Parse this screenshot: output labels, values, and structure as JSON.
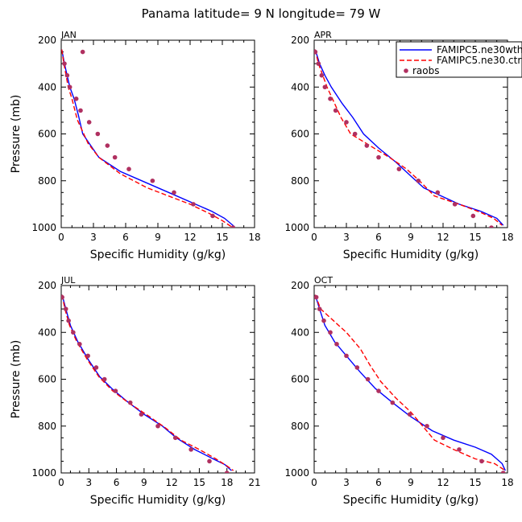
{
  "figure": {
    "title": "Panama   latitude= 9 N longitude= 79 W"
  },
  "legend": {
    "entries": [
      {
        "label": "FAMIPC5.ne30wthr",
        "color": "#0000ff",
        "style": "solid"
      },
      {
        "label": "FAMIPC5.ne30.ctrl",
        "color": "#ff0000",
        "style": "dashed"
      },
      {
        "label": "raobs",
        "color": "#b03060",
        "style": "dot"
      }
    ]
  },
  "chart_data": [
    {
      "type": "line",
      "title": "JAN",
      "xlabel": "Specific Humidity (g/kg)",
      "ylabel": "Pressure (mb)",
      "xlim": [
        0,
        18
      ],
      "ylim": [
        200,
        1000
      ],
      "y_reversed": true,
      "xticks": [
        0,
        3,
        6,
        9,
        12,
        15,
        18
      ],
      "yticks": [
        200,
        400,
        600,
        800,
        1000
      ],
      "series": [
        {
          "name": "FAMIPC5.ne30wthr",
          "points": [
            [
              0.05,
              240
            ],
            [
              0.3,
              300
            ],
            [
              0.55,
              350
            ],
            [
              0.8,
              400
            ],
            [
              1.2,
              450
            ],
            [
              1.6,
              520
            ],
            [
              2.0,
              600
            ],
            [
              3.5,
              700
            ],
            [
              5.5,
              760
            ],
            [
              8.0,
              810
            ],
            [
              10.5,
              860
            ],
            [
              12.5,
              900
            ],
            [
              14.0,
              930
            ],
            [
              15.2,
              960
            ],
            [
              16.1,
              995
            ]
          ]
        },
        {
          "name": "FAMIPC5.ne30.ctrl",
          "points": [
            [
              0.05,
              240
            ],
            [
              0.25,
              300
            ],
            [
              0.45,
              350
            ],
            [
              0.65,
              400
            ],
            [
              1.0,
              450
            ],
            [
              1.5,
              540
            ],
            [
              2.5,
              640
            ],
            [
              3.5,
              700
            ],
            [
              5.5,
              770
            ],
            [
              8.0,
              830
            ],
            [
              10.0,
              865
            ],
            [
              12.0,
              900
            ],
            [
              13.8,
              940
            ],
            [
              15.0,
              970
            ],
            [
              15.8,
              995
            ]
          ]
        },
        {
          "name": "raobs",
          "points": [
            [
              2.0,
              250
            ],
            [
              0.3,
              300
            ],
            [
              0.55,
              350
            ],
            [
              0.8,
              400
            ],
            [
              1.4,
              450
            ],
            [
              1.8,
              500
            ],
            [
              2.6,
              550
            ],
            [
              3.4,
              600
            ],
            [
              4.3,
              650
            ],
            [
              5.0,
              700
            ],
            [
              6.3,
              750
            ],
            [
              8.5,
              800
            ],
            [
              10.5,
              850
            ],
            [
              12.3,
              900
            ],
            [
              14.1,
              950
            ],
            [
              16.0,
              1000
            ]
          ]
        }
      ]
    },
    {
      "type": "line",
      "title": "APR",
      "xlabel": "Specific Humidity (g/kg)",
      "ylabel": "",
      "xlim": [
        0,
        18
      ],
      "ylim": [
        200,
        1000
      ],
      "y_reversed": true,
      "xticks": [
        0,
        3,
        6,
        9,
        12,
        15,
        18
      ],
      "yticks": [
        200,
        400,
        600,
        800,
        1000
      ],
      "series": [
        {
          "name": "FAMIPC5.ne30wthr",
          "points": [
            [
              0.1,
              240
            ],
            [
              0.5,
              300
            ],
            [
              1.0,
              350
            ],
            [
              1.6,
              400
            ],
            [
              2.6,
              470
            ],
            [
              3.6,
              530
            ],
            [
              4.6,
              600
            ],
            [
              6.0,
              660
            ],
            [
              7.6,
              720
            ],
            [
              9.0,
              780
            ],
            [
              10.2,
              830
            ],
            [
              11.6,
              860
            ],
            [
              13.5,
              900
            ],
            [
              15.5,
              930
            ],
            [
              17.0,
              960
            ],
            [
              17.6,
              990
            ]
          ]
        },
        {
          "name": "FAMIPC5.ne30.ctrl",
          "points": [
            [
              0.1,
              240
            ],
            [
              0.4,
              300
            ],
            [
              0.8,
              350
            ],
            [
              1.2,
              400
            ],
            [
              1.8,
              460
            ],
            [
              2.5,
              530
            ],
            [
              3.4,
              600
            ],
            [
              5.2,
              650
            ],
            [
              7.0,
              700
            ],
            [
              8.6,
              750
            ],
            [
              9.8,
              800
            ],
            [
              11.2,
              865
            ],
            [
              13.5,
              900
            ],
            [
              15.5,
              935
            ],
            [
              16.7,
              960
            ],
            [
              17.5,
              990
            ]
          ]
        },
        {
          "name": "raobs",
          "points": [
            [
              0.1,
              250
            ],
            [
              0.4,
              300
            ],
            [
              0.7,
              350
            ],
            [
              1.0,
              400
            ],
            [
              1.5,
              450
            ],
            [
              2.0,
              500
            ],
            [
              3.0,
              550
            ],
            [
              3.8,
              600
            ],
            [
              4.9,
              650
            ],
            [
              6.0,
              700
            ],
            [
              7.9,
              750
            ],
            [
              9.7,
              800
            ],
            [
              11.5,
              850
            ],
            [
              13.1,
              900
            ],
            [
              14.8,
              950
            ],
            [
              16.5,
              1000
            ]
          ]
        }
      ]
    },
    {
      "type": "line",
      "title": "JUL",
      "xlabel": "Specific Humidity (g/kg)",
      "ylabel": "Pressure (mb)",
      "xlim": [
        0,
        21
      ],
      "ylim": [
        200,
        1000
      ],
      "y_reversed": true,
      "xticks": [
        0,
        3,
        6,
        9,
        12,
        15,
        18,
        21
      ],
      "yticks": [
        200,
        400,
        600,
        800,
        1000
      ],
      "series": [
        {
          "name": "FAMIPC5.ne30wthr",
          "points": [
            [
              0.1,
              240
            ],
            [
              0.5,
              300
            ],
            [
              1.0,
              370
            ],
            [
              1.8,
              440
            ],
            [
              3.0,
              520
            ],
            [
              4.2,
              590
            ],
            [
              5.5,
              640
            ],
            [
              7.0,
              690
            ],
            [
              9.0,
              750
            ],
            [
              11.0,
              800
            ],
            [
              12.5,
              850
            ],
            [
              14.5,
              900
            ],
            [
              16.5,
              940
            ],
            [
              17.8,
              965
            ],
            [
              18.5,
              990
            ]
          ]
        },
        {
          "name": "FAMIPC5.ne30.ctrl",
          "points": [
            [
              0.1,
              240
            ],
            [
              0.4,
              300
            ],
            [
              0.9,
              370
            ],
            [
              1.7,
              440
            ],
            [
              2.9,
              520
            ],
            [
              4.1,
              590
            ],
            [
              5.6,
              650
            ],
            [
              7.3,
              700
            ],
            [
              9.6,
              760
            ],
            [
              11.4,
              810
            ],
            [
              13.0,
              860
            ],
            [
              15.0,
              900
            ],
            [
              16.8,
              940
            ],
            [
              18.0,
              970
            ],
            [
              18.7,
              990
            ]
          ]
        },
        {
          "name": "raobs",
          "points": [
            [
              0.1,
              250
            ],
            [
              0.5,
              300
            ],
            [
              0.8,
              350
            ],
            [
              1.3,
              400
            ],
            [
              2.0,
              450
            ],
            [
              2.9,
              500
            ],
            [
              3.8,
              550
            ],
            [
              4.7,
              600
            ],
            [
              5.9,
              650
            ],
            [
              7.5,
              700
            ],
            [
              8.7,
              750
            ],
            [
              10.5,
              800
            ],
            [
              12.4,
              850
            ],
            [
              14.1,
              900
            ],
            [
              16.1,
              950
            ],
            [
              18.0,
              1000
            ]
          ]
        }
      ]
    },
    {
      "type": "line",
      "title": "OCT",
      "xlabel": "Specific Humidity (g/kg)",
      "ylabel": "",
      "xlim": [
        0,
        18
      ],
      "ylim": [
        200,
        1000
      ],
      "y_reversed": true,
      "xticks": [
        0,
        3,
        6,
        9,
        12,
        15,
        18
      ],
      "yticks": [
        200,
        400,
        600,
        800,
        1000
      ],
      "series": [
        {
          "name": "FAMIPC5.ne30wthr",
          "points": [
            [
              0.1,
              240
            ],
            [
              0.5,
              300
            ],
            [
              1.0,
              370
            ],
            [
              1.9,
              440
            ],
            [
              3.0,
              500
            ],
            [
              4.3,
              570
            ],
            [
              5.7,
              640
            ],
            [
              7.3,
              700
            ],
            [
              9.0,
              760
            ],
            [
              11.0,
              820
            ],
            [
              13.0,
              860
            ],
            [
              15.0,
              890
            ],
            [
              16.5,
              920
            ],
            [
              17.5,
              960
            ],
            [
              17.8,
              990
            ]
          ]
        },
        {
          "name": "FAMIPC5.ne30.ctrl",
          "points": [
            [
              0.1,
              240
            ],
            [
              0.6,
              300
            ],
            [
              1.8,
              350
            ],
            [
              3.0,
              400
            ],
            [
              4.3,
              470
            ],
            [
              5.2,
              540
            ],
            [
              6.2,
              610
            ],
            [
              7.6,
              680
            ],
            [
              9.0,
              740
            ],
            [
              10.1,
              800
            ],
            [
              11.2,
              860
            ],
            [
              13.0,
              900
            ],
            [
              15.0,
              940
            ],
            [
              16.8,
              960
            ],
            [
              17.8,
              990
            ]
          ]
        },
        {
          "name": "raobs",
          "points": [
            [
              0.2,
              250
            ],
            [
              0.5,
              300
            ],
            [
              0.9,
              350
            ],
            [
              1.5,
              400
            ],
            [
              2.1,
              450
            ],
            [
              3.0,
              500
            ],
            [
              4.0,
              550
            ],
            [
              5.0,
              600
            ],
            [
              6.0,
              650
            ],
            [
              7.3,
              700
            ],
            [
              8.9,
              750
            ],
            [
              10.5,
              800
            ],
            [
              12.0,
              850
            ],
            [
              13.5,
              900
            ],
            [
              15.6,
              950
            ],
            [
              17.6,
              1000
            ]
          ]
        }
      ]
    }
  ]
}
